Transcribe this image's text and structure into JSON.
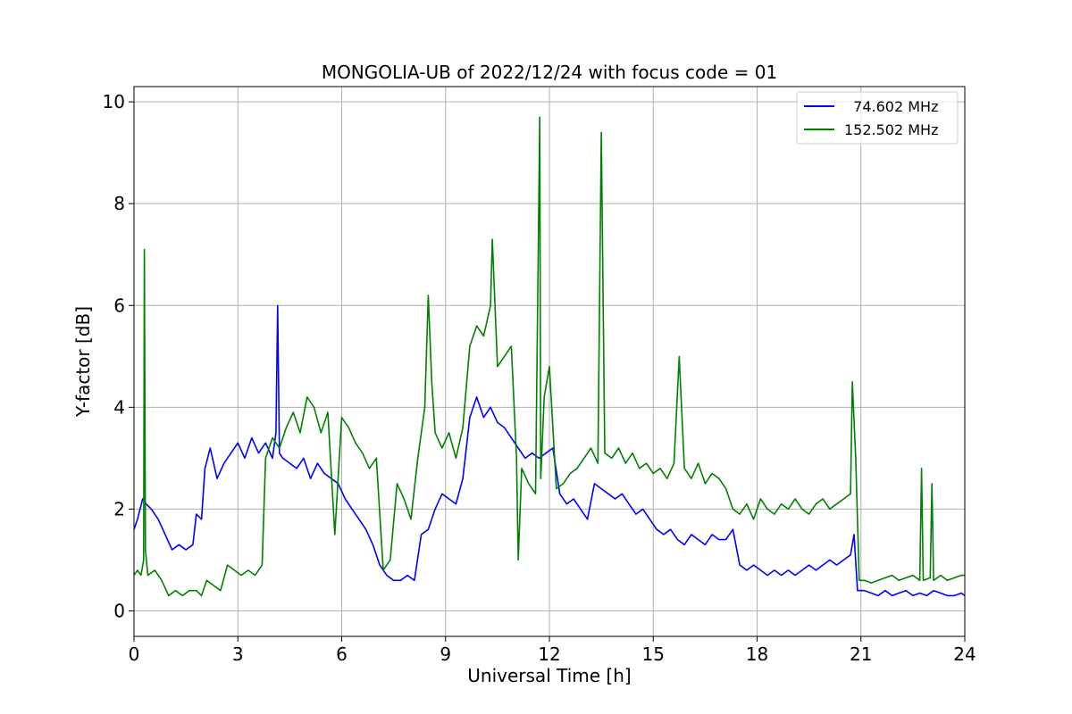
{
  "chart_data": {
    "type": "line",
    "title": "MONGOLIA-UB of 2022/12/24 with focus code = 01",
    "xlabel": "Universal Time [h]",
    "ylabel": "Y-factor [dB]",
    "xlim": [
      0,
      24
    ],
    "ylim": [
      -0.5,
      10.3
    ],
    "xticks": [
      "0",
      "3",
      "6",
      "9",
      "12",
      "15",
      "18",
      "21",
      "24"
    ],
    "yticks": [
      "0",
      "2",
      "4",
      "6",
      "8",
      "10"
    ],
    "grid": true,
    "legend_position": "top-right",
    "series": [
      {
        "name": "  74.602 MHz",
        "color": "#0000ff",
        "x": [
          0,
          0.1,
          0.25,
          0.35,
          0.5,
          0.7,
          0.9,
          1.1,
          1.3,
          1.5,
          1.7,
          1.8,
          1.95,
          2.05,
          2.2,
          2.4,
          2.6,
          2.8,
          3.0,
          3.2,
          3.4,
          3.6,
          3.8,
          4.0,
          4.1,
          4.15,
          4.2,
          4.3,
          4.5,
          4.7,
          4.9,
          5.1,
          5.3,
          5.5,
          5.7,
          5.9,
          6.1,
          6.3,
          6.5,
          6.7,
          6.9,
          7.1,
          7.3,
          7.5,
          7.7,
          7.9,
          8.1,
          8.3,
          8.5,
          8.7,
          8.9,
          9.1,
          9.3,
          9.5,
          9.7,
          9.9,
          10.1,
          10.3,
          10.5,
          10.7,
          10.9,
          11.1,
          11.3,
          11.5,
          11.7,
          11.9,
          12.1,
          12.3,
          12.5,
          12.7,
          12.9,
          13.1,
          13.3,
          13.5,
          13.7,
          13.9,
          14.1,
          14.3,
          14.5,
          14.7,
          14.9,
          15.1,
          15.3,
          15.5,
          15.7,
          15.9,
          16.1,
          16.3,
          16.5,
          16.7,
          16.9,
          17.1,
          17.3,
          17.5,
          17.7,
          17.9,
          18.1,
          18.3,
          18.5,
          18.7,
          18.9,
          19.1,
          19.3,
          19.5,
          19.7,
          19.9,
          20.1,
          20.3,
          20.5,
          20.7,
          20.8,
          20.9,
          21.1,
          21.3,
          21.5,
          21.7,
          21.9,
          22.1,
          22.3,
          22.5,
          22.7,
          22.9,
          23.1,
          23.3,
          23.5,
          23.7,
          23.9,
          24.0
        ],
        "y": [
          1.6,
          1.8,
          2.2,
          2.1,
          2.0,
          1.8,
          1.5,
          1.2,
          1.3,
          1.2,
          1.3,
          1.9,
          1.8,
          2.8,
          3.2,
          2.6,
          2.9,
          3.1,
          3.3,
          3.0,
          3.4,
          3.1,
          3.3,
          3.0,
          3.5,
          6.0,
          3.1,
          3.0,
          2.9,
          2.8,
          3.0,
          2.6,
          2.9,
          2.7,
          2.6,
          2.5,
          2.2,
          2.0,
          1.8,
          1.6,
          1.3,
          0.9,
          0.7,
          0.6,
          0.6,
          0.7,
          0.6,
          1.5,
          1.6,
          2.0,
          2.3,
          2.2,
          2.1,
          2.6,
          3.8,
          4.2,
          3.8,
          4.0,
          3.7,
          3.6,
          3.4,
          3.2,
          3.0,
          3.1,
          3.0,
          3.1,
          3.2,
          2.3,
          2.1,
          2.2,
          2.0,
          1.8,
          2.5,
          2.4,
          2.3,
          2.2,
          2.3,
          2.1,
          1.9,
          2.0,
          1.8,
          1.6,
          1.5,
          1.6,
          1.4,
          1.3,
          1.5,
          1.4,
          1.3,
          1.5,
          1.4,
          1.4,
          1.6,
          0.9,
          0.8,
          0.9,
          0.8,
          0.7,
          0.8,
          0.7,
          0.8,
          0.7,
          0.8,
          0.9,
          0.8,
          0.9,
          1.0,
          0.9,
          1.0,
          1.1,
          1.5,
          0.4,
          0.4,
          0.35,
          0.3,
          0.4,
          0.3,
          0.35,
          0.4,
          0.3,
          0.35,
          0.3,
          0.4,
          0.35,
          0.3,
          0.3,
          0.35,
          0.3
        ]
      },
      {
        "name": "152.502 MHz",
        "color": "#008000",
        "x": [
          0,
          0.1,
          0.2,
          0.28,
          0.3,
          0.33,
          0.4,
          0.6,
          0.8,
          1.0,
          1.2,
          1.4,
          1.6,
          1.8,
          1.95,
          2.1,
          2.3,
          2.5,
          2.7,
          2.9,
          3.1,
          3.3,
          3.5,
          3.7,
          3.8,
          4.0,
          4.2,
          4.4,
          4.6,
          4.8,
          5.0,
          5.2,
          5.4,
          5.6,
          5.8,
          6.0,
          6.2,
          6.4,
          6.6,
          6.8,
          7.0,
          7.2,
          7.4,
          7.6,
          7.8,
          8.0,
          8.2,
          8.4,
          8.5,
          8.6,
          8.7,
          8.9,
          9.1,
          9.3,
          9.5,
          9.7,
          9.9,
          10.1,
          10.3,
          10.35,
          10.5,
          10.7,
          10.9,
          11.05,
          11.1,
          11.2,
          11.4,
          11.6,
          11.72,
          11.75,
          11.85,
          12.0,
          12.2,
          12.4,
          12.6,
          12.8,
          13.0,
          13.2,
          13.4,
          13.5,
          13.6,
          13.8,
          14.0,
          14.2,
          14.4,
          14.6,
          14.8,
          15.0,
          15.2,
          15.4,
          15.6,
          15.75,
          15.9,
          16.1,
          16.3,
          16.5,
          16.7,
          16.9,
          17.1,
          17.3,
          17.5,
          17.7,
          17.9,
          18.1,
          18.3,
          18.5,
          18.7,
          18.9,
          19.1,
          19.3,
          19.5,
          19.7,
          19.9,
          20.1,
          20.3,
          20.5,
          20.7,
          20.75,
          20.85,
          20.95,
          21.1,
          21.3,
          21.5,
          21.7,
          21.9,
          22.1,
          22.3,
          22.5,
          22.7,
          22.75,
          22.8,
          23.0,
          23.05,
          23.1,
          23.3,
          23.5,
          23.7,
          23.9,
          24.0
        ],
        "y": [
          0.7,
          0.8,
          0.7,
          1.0,
          7.1,
          1.2,
          0.7,
          0.8,
          0.6,
          0.3,
          0.4,
          0.3,
          0.4,
          0.4,
          0.3,
          0.6,
          0.5,
          0.4,
          0.9,
          0.8,
          0.7,
          0.8,
          0.7,
          0.9,
          3.0,
          3.4,
          3.2,
          3.6,
          3.9,
          3.5,
          4.2,
          4.0,
          3.5,
          3.9,
          1.5,
          3.8,
          3.6,
          3.3,
          3.1,
          2.8,
          3.0,
          0.8,
          1.0,
          2.5,
          2.2,
          1.8,
          3.0,
          4.0,
          6.2,
          4.5,
          3.5,
          3.2,
          3.5,
          3.0,
          3.6,
          5.2,
          5.6,
          5.4,
          6.0,
          7.3,
          4.8,
          5.0,
          5.2,
          3.0,
          1.0,
          2.8,
          2.5,
          2.3,
          9.7,
          2.6,
          4.2,
          4.8,
          2.4,
          2.5,
          2.7,
          2.8,
          3.0,
          3.2,
          2.9,
          9.4,
          3.1,
          3.0,
          3.2,
          2.9,
          3.1,
          2.8,
          2.9,
          2.7,
          2.8,
          2.6,
          2.9,
          5.0,
          2.8,
          2.6,
          2.9,
          2.5,
          2.7,
          2.6,
          2.4,
          2.0,
          1.9,
          2.1,
          1.8,
          2.2,
          2.0,
          1.9,
          2.1,
          2.0,
          2.2,
          2.0,
          1.9,
          2.1,
          2.2,
          2.0,
          2.1,
          2.2,
          2.3,
          4.5,
          3.0,
          0.6,
          0.6,
          0.55,
          0.6,
          0.65,
          0.7,
          0.6,
          0.65,
          0.7,
          0.6,
          2.8,
          0.6,
          0.65,
          2.5,
          0.6,
          0.7,
          0.6,
          0.65,
          0.7,
          0.7
        ]
      }
    ]
  }
}
